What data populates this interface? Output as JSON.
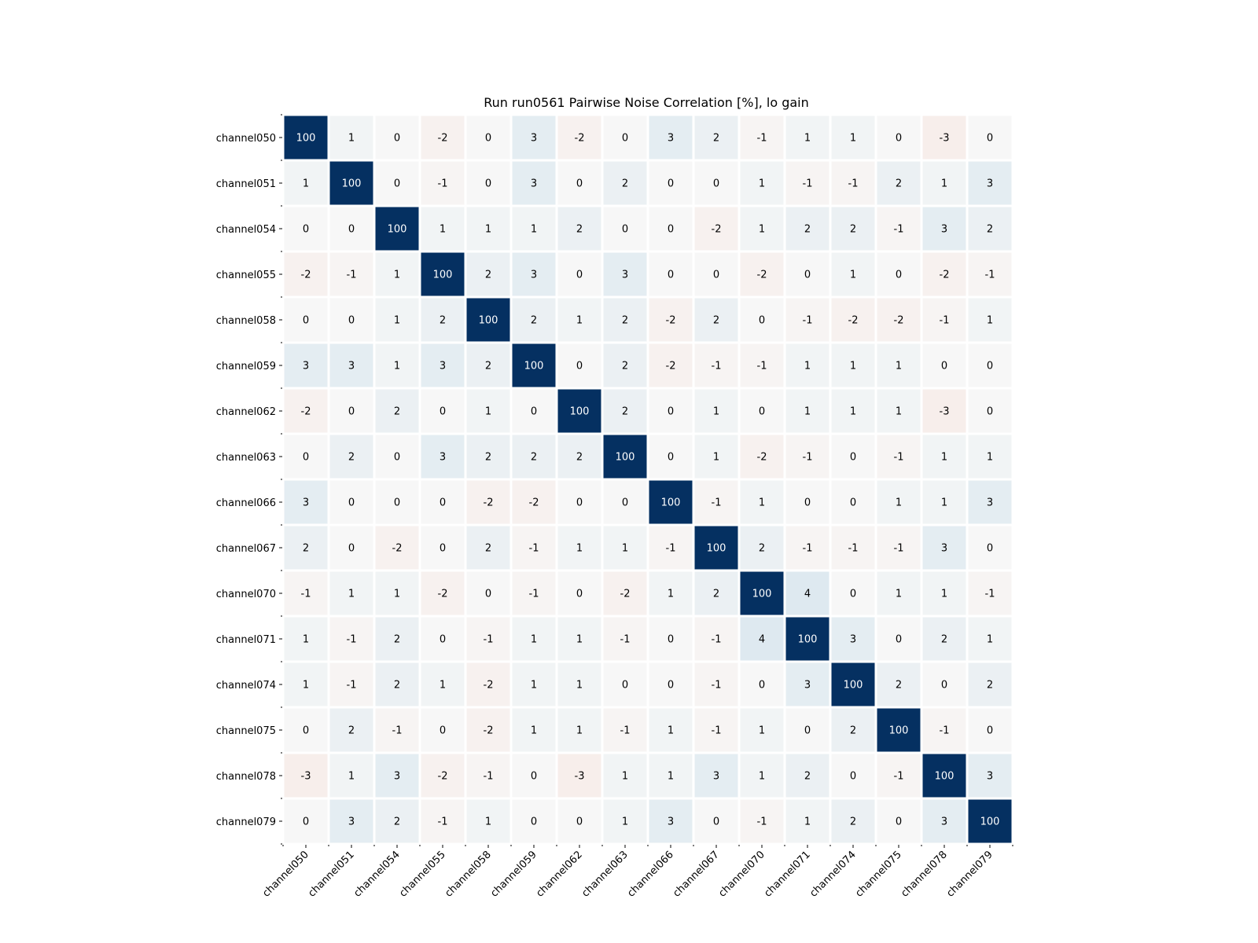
{
  "chart_data": {
    "type": "heatmap",
    "title": "Run run0561 Pairwise Noise Correlation [%], lo gain",
    "xlabel": "",
    "ylabel": "",
    "channels": [
      "channel050",
      "channel051",
      "channel054",
      "channel055",
      "channel058",
      "channel059",
      "channel062",
      "channel063",
      "channel066",
      "channel067",
      "channel070",
      "channel071",
      "channel074",
      "channel075",
      "channel078",
      "channel079"
    ],
    "values": [
      [
        100,
        1,
        0,
        -2,
        0,
        3,
        -2,
        0,
        3,
        2,
        -1,
        1,
        1,
        0,
        -3,
        0
      ],
      [
        1,
        100,
        0,
        -1,
        0,
        3,
        0,
        2,
        0,
        0,
        1,
        -1,
        -1,
        2,
        1,
        3
      ],
      [
        0,
        0,
        100,
        1,
        1,
        1,
        2,
        0,
        0,
        -2,
        1,
        2,
        2,
        -1,
        3,
        2
      ],
      [
        -2,
        -1,
        1,
        100,
        2,
        3,
        0,
        3,
        0,
        0,
        -2,
        0,
        1,
        0,
        -2,
        -1
      ],
      [
        0,
        0,
        1,
        2,
        100,
        2,
        1,
        2,
        -2,
        2,
        0,
        -1,
        -2,
        -2,
        -1,
        1
      ],
      [
        3,
        3,
        1,
        3,
        2,
        100,
        0,
        2,
        -2,
        -1,
        -1,
        1,
        1,
        1,
        0,
        0
      ],
      [
        -2,
        0,
        2,
        0,
        1,
        0,
        100,
        2,
        0,
        1,
        0,
        1,
        1,
        1,
        -3,
        0
      ],
      [
        0,
        2,
        0,
        3,
        2,
        2,
        2,
        100,
        0,
        1,
        -2,
        -1,
        0,
        -1,
        1,
        1
      ],
      [
        3,
        0,
        0,
        0,
        -2,
        -2,
        0,
        0,
        100,
        -1,
        1,
        0,
        0,
        1,
        1,
        3
      ],
      [
        2,
        0,
        -2,
        0,
        2,
        -1,
        1,
        1,
        -1,
        100,
        2,
        -1,
        -1,
        -1,
        3,
        0
      ],
      [
        -1,
        1,
        1,
        -2,
        0,
        -1,
        0,
        -2,
        1,
        2,
        100,
        4,
        0,
        1,
        1,
        -1
      ],
      [
        1,
        -1,
        2,
        0,
        -1,
        1,
        1,
        -1,
        0,
        -1,
        4,
        100,
        3,
        0,
        2,
        1
      ],
      [
        1,
        -1,
        2,
        1,
        -2,
        1,
        1,
        0,
        0,
        -1,
        0,
        3,
        100,
        2,
        0,
        2
      ],
      [
        0,
        2,
        -1,
        0,
        -2,
        1,
        1,
        -1,
        1,
        -1,
        1,
        0,
        2,
        100,
        -1,
        0
      ],
      [
        -3,
        1,
        3,
        -2,
        -1,
        0,
        -3,
        1,
        1,
        3,
        1,
        2,
        0,
        -1,
        100,
        3
      ],
      [
        0,
        3,
        2,
        -1,
        1,
        0,
        0,
        1,
        3,
        0,
        -1,
        1,
        2,
        0,
        3,
        100
      ]
    ],
    "colormap": "RdBu",
    "vmin": -100,
    "vmax": 100,
    "grid": false,
    "legend": "none",
    "colors": {
      "max_positive": "#053061",
      "neutral": "#f7f7f7",
      "max_negative": "#67001f",
      "cell_border": "#ffffff",
      "text_dark": "#000000",
      "text_light": "#ffffff"
    }
  }
}
